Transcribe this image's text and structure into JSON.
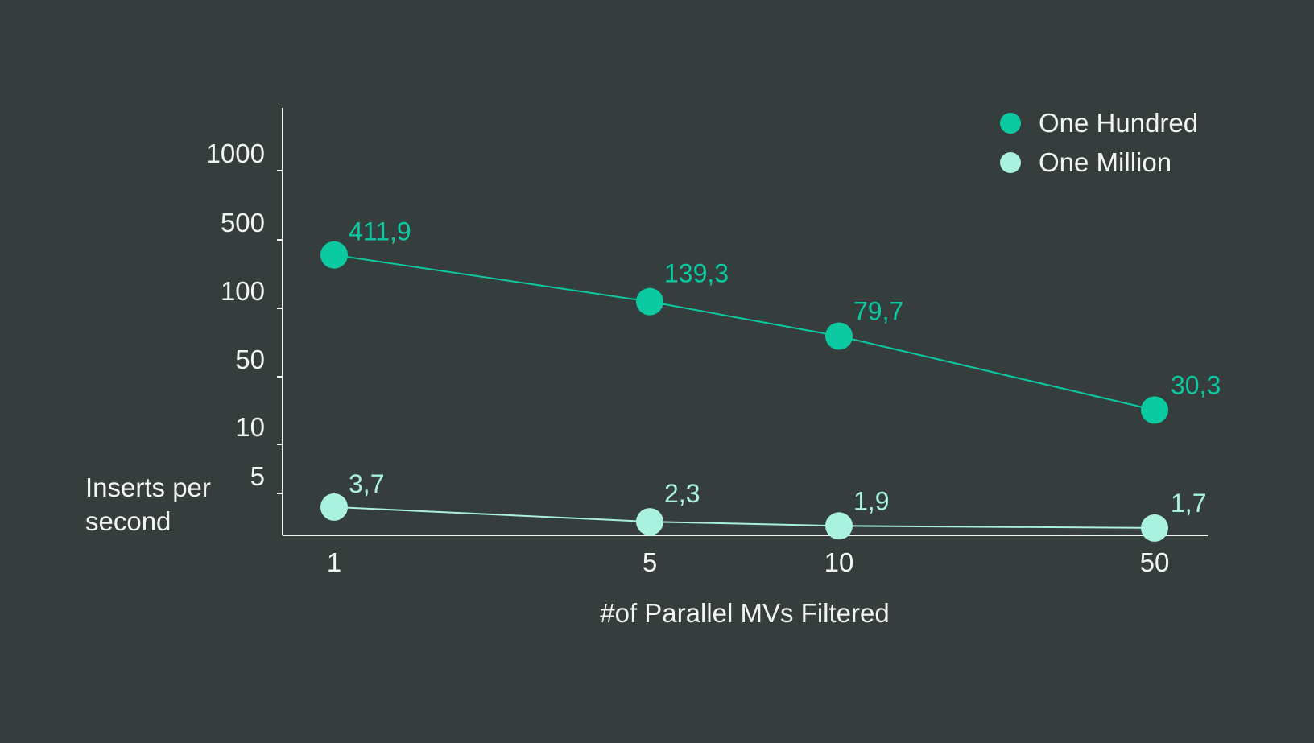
{
  "chart_data": {
    "type": "line",
    "title": "",
    "xlabel": "#of Parallel MVs Filtered",
    "ylabel_lines": [
      "Inserts per",
      "second"
    ],
    "x_scale": "categorical",
    "categories": [
      "1",
      "5",
      "10",
      "50"
    ],
    "y_ticks": [
      {
        "value": 1000,
        "label": "1000"
      },
      {
        "value": 500,
        "label": "500"
      },
      {
        "value": 100,
        "label": "100"
      },
      {
        "value": 50,
        "label": "50"
      },
      {
        "value": 10,
        "label": "10"
      },
      {
        "value": 5,
        "label": "5"
      }
    ],
    "grid": false,
    "legend_position": "top-right",
    "series": [
      {
        "name": "One Hundred",
        "color": "#0bc9a0",
        "values": [
          411.9,
          139.3,
          79.7,
          30.3
        ],
        "labels": [
          "411,9",
          "139,3",
          "79,7",
          "30,3"
        ]
      },
      {
        "name": "One Million",
        "color": "#a8f2df",
        "values": [
          3.7,
          2.3,
          1.9,
          1.7
        ],
        "labels": [
          "3,7",
          "2,3",
          "1,9",
          "1,7"
        ]
      }
    ]
  }
}
